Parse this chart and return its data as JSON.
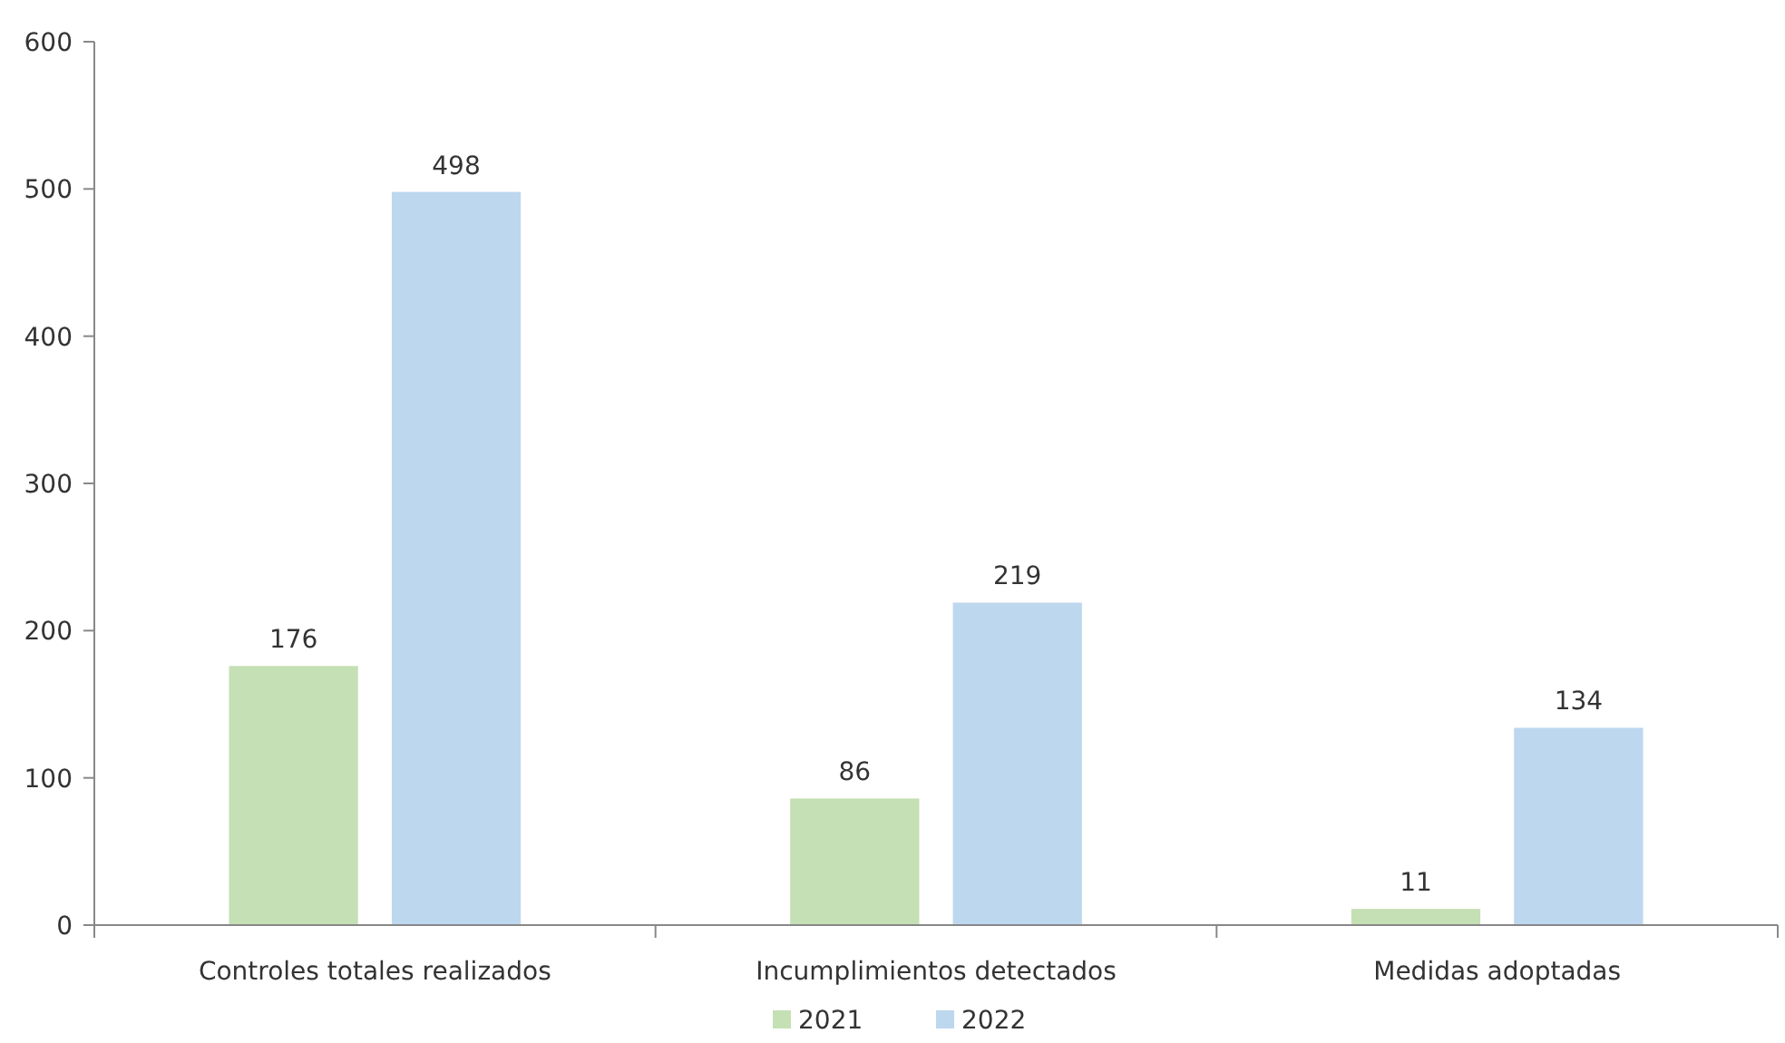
{
  "chart_data": {
    "type": "bar",
    "categories": [
      "Controles totales realizados",
      "Incumplimientos detectados",
      "Medidas adoptadas"
    ],
    "series": [
      {
        "name": "2021",
        "color": "#c5e0b4",
        "values": [
          176,
          86,
          11
        ]
      },
      {
        "name": "2022",
        "color": "#bdd7ee",
        "values": [
          498,
          219,
          134
        ]
      }
    ],
    "ylim": [
      0,
      600
    ],
    "yticks": [
      0,
      100,
      200,
      300,
      400,
      500,
      600
    ],
    "data_labels": true,
    "grid": false,
    "legend": "bottom"
  }
}
